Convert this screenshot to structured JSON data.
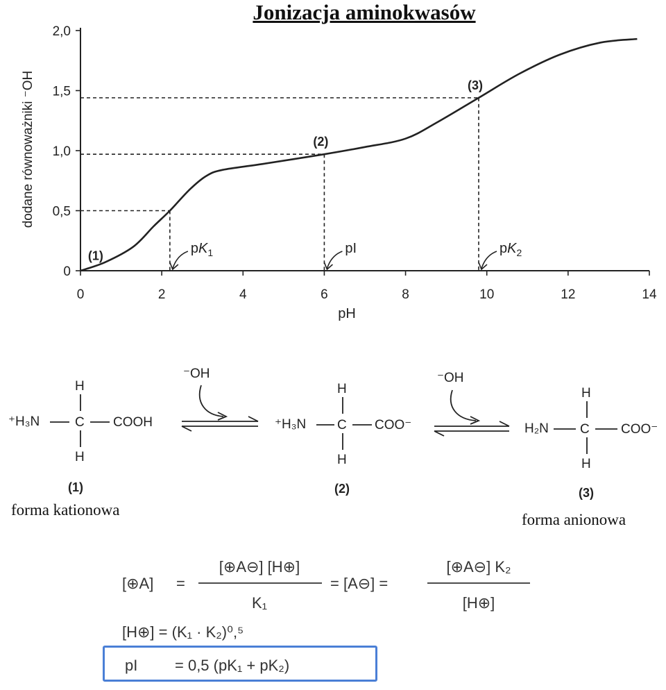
{
  "title": "Jonizacja aminokwasów",
  "chart_data": {
    "type": "line",
    "xlabel": "pH",
    "ylabel": "dodane równoważniki ⁻OH",
    "xlim": [
      0,
      14
    ],
    "ylim": [
      0,
      2.0
    ],
    "x_ticks": [
      "0",
      "2",
      "4",
      "6",
      "8",
      "10",
      "12",
      "14"
    ],
    "y_ticks": [
      "0",
      "0,5",
      "1,0",
      "1,5",
      "2,0"
    ],
    "x": [
      0,
      0.6,
      1.3,
      1.8,
      2.2,
      2.7,
      3.1,
      3.5,
      4.5,
      6.0,
      7.0,
      8.0,
      8.8,
      9.8,
      10.8,
      11.8,
      12.8,
      13.7
    ],
    "y": [
      0,
      0.07,
      0.2,
      0.37,
      0.5,
      0.68,
      0.79,
      0.84,
      0.89,
      0.97,
      1.03,
      1.1,
      1.24,
      1.44,
      1.64,
      1.8,
      1.9,
      1.93
    ],
    "markers": [
      {
        "label": "(1)",
        "x": 0.05,
        "y": 0.01
      },
      {
        "label": "(2)",
        "x": 6.0,
        "y": 0.97
      },
      {
        "label": "(3)",
        "x": 9.8,
        "y": 1.44
      }
    ],
    "reference_points": [
      {
        "label": "pK1",
        "x": 2.2,
        "y": 0.5
      },
      {
        "label": "pI",
        "x": 6.0,
        "y": 0.97
      },
      {
        "label": "pK2",
        "x": 9.8,
        "y": 1.44
      }
    ]
  },
  "reaction": {
    "reagent": "⁻OH",
    "h": "H",
    "c": "C",
    "species": [
      {
        "label": "(1)",
        "left": "⁺H₃N",
        "right": "COOH"
      },
      {
        "label": "(2)",
        "left": "⁺H₃N",
        "right": "COO⁻"
      },
      {
        "label": "(3)",
        "left": "H₂N",
        "right": "COO⁻"
      }
    ],
    "caption_left": "forma kationowa",
    "caption_right": "forma anionowa"
  },
  "equations": {
    "line1_left": "[⊕A]",
    "line1_eq": "=",
    "line1_num": "[⊕A⊖] [H⊕]",
    "line1_den": "K₁",
    "line1_mid": "= [A⊖] =",
    "line1_num2": "[⊕A⊖] K₂",
    "line1_den2": "[H⊕]",
    "line2": "[H⊕] = (K₁ · K₂)⁰,⁵",
    "line3_left": "pI",
    "line3_right": "= 0,5 (pK₁ + pK₂)"
  }
}
